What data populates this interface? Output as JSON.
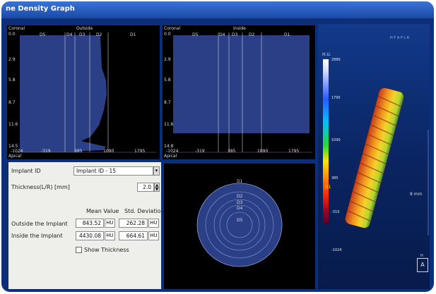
{
  "window": {
    "title": "ne Density Graph"
  },
  "graph_outside": {
    "coronal": "Coronal",
    "region": "Outside",
    "apical": "Apical",
    "zones": [
      "D5",
      "D4",
      "D3",
      "D2",
      "D1"
    ],
    "y_ticks": [
      "0.0",
      "2.9",
      "5.8",
      "8.7",
      "11.6",
      "14.5"
    ],
    "x_ticks": [
      "-1024",
      "-319",
      "385",
      "1090",
      "1795"
    ]
  },
  "graph_inside": {
    "coronal": "Coronal",
    "region": "Inside",
    "apical": "Apical",
    "zones": [
      "D5",
      "D4",
      "D3",
      "D2",
      "D1"
    ],
    "y_ticks": [
      "0.0",
      "2.9",
      "5.8",
      "8.7",
      "11.6",
      "14.8"
    ],
    "x_ticks": [
      "-1024",
      "-319",
      "385",
      "1090",
      "1795"
    ]
  },
  "cross_section": {
    "labels": [
      "D1",
      "D2",
      "D3",
      "D4",
      "D5"
    ]
  },
  "form": {
    "implant_id_label": "Implant ID",
    "implant_id_value": "Implant ID - 15",
    "thickness_label": "Thickness(L/R) [mm]",
    "thickness_value": "2.0",
    "mean_header": "Mean Value",
    "std_header": "Std. Deviation",
    "outside_label": "Outside the Implant",
    "outside_mean": "843.52",
    "outside_std": "262.28",
    "inside_label": "Inside the Implant",
    "inside_mean": "4430.08",
    "inside_std": "664.61",
    "unit": "HU",
    "show_thickness_label": "Show Thickness"
  },
  "view3d": {
    "orientation": "H F A P L R",
    "hu_label": "H.U.",
    "ticks": [
      "2880",
      "1795",
      "1090",
      "385",
      "-319",
      "-1024"
    ],
    "d_marker": "D1",
    "scale_label": "8 mm",
    "cube_top": "H",
    "cube_face": "A"
  }
}
